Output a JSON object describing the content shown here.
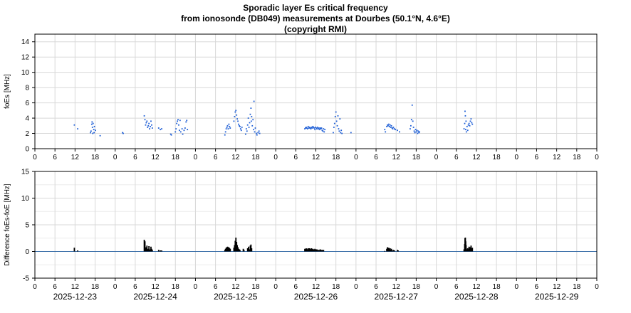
{
  "title": {
    "line1": "Sporadic layer Es critical frequency",
    "line2": "from ionosonde (DB049) measurements at Dourbes (50.1°N, 4.6°E)",
    "line3": "(copyright RMI)"
  },
  "colors": {
    "foes_points": "#1f5fd6",
    "difference_bars": "#000000",
    "zero_line": "#3a6ea8",
    "grid": "#d8d8d8"
  },
  "chart_data": [
    {
      "type": "scatter",
      "ylabel": "foEs [MHz]",
      "ylim": [
        0,
        15
      ],
      "yticks": [
        0,
        2,
        4,
        6,
        8,
        10,
        12,
        14
      ],
      "xlim_hours": [
        0,
        168
      ],
      "x_tick_labels": [
        "0",
        "6",
        "12",
        "18",
        "0",
        "6",
        "12",
        "18",
        "0",
        "6",
        "12",
        "18",
        "0",
        "6",
        "12",
        "18",
        "0",
        "6",
        "12",
        "18",
        "0",
        "6",
        "12",
        "18",
        "0",
        "6",
        "12",
        "18",
        "0"
      ],
      "grid": true,
      "points": [
        [
          11.8,
          3.1
        ],
        [
          12.8,
          2.6
        ],
        [
          16.6,
          2.1
        ],
        [
          16.8,
          2.3
        ],
        [
          17.0,
          3.2
        ],
        [
          17.1,
          3.5
        ],
        [
          17.2,
          2.8
        ],
        [
          17.3,
          2.0
        ],
        [
          17.4,
          3.3
        ],
        [
          17.6,
          2.5
        ],
        [
          17.7,
          2.1
        ],
        [
          17.8,
          2.9
        ],
        [
          18.1,
          2.4
        ],
        [
          19.5,
          1.7
        ],
        [
          26.2,
          2.1
        ],
        [
          26.4,
          2.0
        ],
        [
          32.7,
          4.3
        ],
        [
          32.9,
          3.8
        ],
        [
          33.1,
          3.1
        ],
        [
          33.3,
          3.4
        ],
        [
          33.5,
          3.6
        ],
        [
          33.7,
          2.8
        ],
        [
          33.9,
          3.0
        ],
        [
          34.1,
          3.3
        ],
        [
          34.3,
          2.6
        ],
        [
          34.5,
          2.9
        ],
        [
          34.7,
          3.6
        ],
        [
          34.9,
          3.1
        ],
        [
          35.1,
          2.7
        ],
        [
          37.0,
          2.7
        ],
        [
          37.5,
          2.5
        ],
        [
          37.9,
          2.6
        ],
        [
          40.6,
          1.9
        ],
        [
          40.8,
          1.8
        ],
        [
          42.0,
          2.2
        ],
        [
          42.2,
          2.6
        ],
        [
          42.4,
          3.3
        ],
        [
          42.6,
          3.6
        ],
        [
          42.8,
          3.8
        ],
        [
          43.0,
          3.1
        ],
        [
          43.2,
          2.4
        ],
        [
          43.4,
          3.7
        ],
        [
          43.6,
          2.2
        ],
        [
          44.0,
          2.6
        ],
        [
          44.2,
          1.9
        ],
        [
          44.6,
          2.4
        ],
        [
          44.9,
          2.7
        ],
        [
          45.2,
          3.5
        ],
        [
          45.4,
          3.7
        ],
        [
          45.6,
          2.5
        ],
        [
          56.8,
          1.8
        ],
        [
          57.0,
          2.2
        ],
        [
          57.2,
          2.6
        ],
        [
          57.4,
          2.8
        ],
        [
          57.6,
          3.0
        ],
        [
          57.8,
          2.6
        ],
        [
          58.0,
          3.2
        ],
        [
          58.2,
          2.9
        ],
        [
          58.4,
          2.7
        ],
        [
          59.5,
          3.6
        ],
        [
          59.7,
          4.2
        ],
        [
          59.9,
          4.8
        ],
        [
          60.1,
          5.0
        ],
        [
          60.3,
          4.4
        ],
        [
          60.5,
          3.9
        ],
        [
          60.7,
          3.6
        ],
        [
          60.9,
          3.2
        ],
        [
          61.1,
          3.0
        ],
        [
          61.3,
          2.9
        ],
        [
          61.5,
          2.6
        ],
        [
          61.7,
          2.4
        ],
        [
          61.9,
          2.8
        ],
        [
          63.0,
          1.9
        ],
        [
          63.2,
          2.6
        ],
        [
          63.4,
          2.3
        ],
        [
          63.6,
          3.1
        ],
        [
          63.8,
          4.0
        ],
        [
          64.0,
          2.8
        ],
        [
          64.2,
          3.4
        ],
        [
          64.4,
          4.5
        ],
        [
          64.6,
          5.3
        ],
        [
          64.7,
          3.6
        ],
        [
          64.8,
          4.2
        ],
        [
          65.0,
          3.0
        ],
        [
          65.2,
          3.8
        ],
        [
          65.4,
          2.5
        ],
        [
          65.5,
          6.2
        ],
        [
          65.7,
          2.2
        ],
        [
          65.9,
          2.7
        ],
        [
          66.2,
          2.0
        ],
        [
          66.4,
          1.8
        ],
        [
          66.7,
          2.1
        ],
        [
          67.0,
          2.3
        ],
        [
          67.2,
          2.0
        ],
        [
          80.7,
          2.6
        ],
        [
          80.9,
          2.7
        ],
        [
          81.1,
          2.8
        ],
        [
          81.3,
          2.7
        ],
        [
          81.5,
          2.6
        ],
        [
          81.7,
          2.9
        ],
        [
          81.9,
          2.7
        ],
        [
          82.1,
          2.8
        ],
        [
          82.3,
          2.7
        ],
        [
          82.5,
          2.6
        ],
        [
          82.7,
          2.8
        ],
        [
          82.9,
          2.7
        ],
        [
          83.1,
          2.9
        ],
        [
          83.3,
          2.8
        ],
        [
          83.5,
          2.7
        ],
        [
          83.7,
          2.5
        ],
        [
          83.9,
          2.8
        ],
        [
          84.1,
          2.7
        ],
        [
          84.3,
          2.6
        ],
        [
          84.5,
          2.8
        ],
        [
          84.7,
          2.6
        ],
        [
          84.9,
          2.7
        ],
        [
          85.1,
          2.5
        ],
        [
          85.3,
          2.7
        ],
        [
          85.5,
          2.6
        ],
        [
          85.7,
          2.7
        ],
        [
          85.9,
          2.4
        ],
        [
          86.1,
          2.3
        ],
        [
          86.3,
          2.6
        ],
        [
          86.5,
          2.2
        ],
        [
          86.7,
          2.5
        ],
        [
          89.2,
          2.1
        ],
        [
          89.4,
          2.8
        ],
        [
          89.6,
          3.3
        ],
        [
          89.8,
          4.2
        ],
        [
          90.0,
          4.8
        ],
        [
          90.2,
          3.6
        ],
        [
          90.4,
          3.0
        ],
        [
          90.6,
          4.3
        ],
        [
          90.8,
          2.6
        ],
        [
          91.0,
          2.3
        ],
        [
          91.2,
          3.9
        ],
        [
          91.4,
          2.1
        ],
        [
          91.6,
          2.4
        ],
        [
          91.8,
          2.0
        ],
        [
          94.5,
          2.1
        ],
        [
          104.6,
          2.5
        ],
        [
          104.8,
          2.2
        ],
        [
          105.2,
          2.9
        ],
        [
          105.4,
          3.1
        ],
        [
          105.6,
          3.0
        ],
        [
          105.8,
          3.2
        ],
        [
          106.0,
          2.9
        ],
        [
          106.2,
          3.1
        ],
        [
          106.4,
          2.8
        ],
        [
          106.6,
          3.0
        ],
        [
          106.8,
          2.7
        ],
        [
          107.0,
          2.6
        ],
        [
          107.2,
          2.8
        ],
        [
          107.5,
          2.6
        ],
        [
          107.8,
          2.5
        ],
        [
          108.4,
          2.4
        ],
        [
          109.0,
          2.2
        ],
        [
          112.2,
          2.6
        ],
        [
          112.4,
          3.0
        ],
        [
          112.6,
          3.8
        ],
        [
          112.8,
          5.7
        ],
        [
          113.0,
          3.6
        ],
        [
          113.2,
          2.8
        ],
        [
          113.4,
          2.3
        ],
        [
          113.6,
          2.1
        ],
        [
          113.8,
          2.5
        ],
        [
          114.0,
          2.2
        ],
        [
          114.2,
          2.4
        ],
        [
          114.4,
          2.0
        ],
        [
          114.6,
          2.3
        ],
        [
          114.8,
          2.1
        ],
        [
          115.0,
          2.2
        ],
        [
          128.3,
          2.6
        ],
        [
          128.5,
          3.3
        ],
        [
          128.6,
          4.9
        ],
        [
          128.7,
          4.3
        ],
        [
          128.8,
          2.5
        ],
        [
          128.9,
          3.6
        ],
        [
          129.0,
          2.2
        ],
        [
          129.2,
          2.9
        ],
        [
          129.4,
          2.4
        ],
        [
          129.6,
          3.1
        ],
        [
          129.8,
          3.3
        ],
        [
          130.0,
          3.0
        ],
        [
          130.2,
          3.6
        ],
        [
          130.4,
          3.9
        ],
        [
          130.6,
          3.4
        ],
        [
          130.8,
          3.2
        ]
      ]
    },
    {
      "type": "bar",
      "ylabel": "Difference foEs-foE [MHz]",
      "ylim": [
        -5,
        15
      ],
      "yticks": [
        -5,
        0,
        5,
        10,
        15
      ],
      "xlim_hours": [
        0,
        168
      ],
      "x_tick_labels": [
        "0",
        "6",
        "12",
        "18",
        "0",
        "6",
        "12",
        "18",
        "0",
        "6",
        "12",
        "18",
        "0",
        "6",
        "12",
        "18",
        "0",
        "6",
        "12",
        "18",
        "0",
        "6",
        "12",
        "18",
        "0",
        "6",
        "12",
        "18",
        "0"
      ],
      "date_labels": [
        "2025-12-23",
        "2025-12-24",
        "2025-12-25",
        "2025-12-26",
        "2025-12-27",
        "2025-12-28",
        "2025-12-29"
      ],
      "grid": true,
      "values": [
        [
          11.8,
          0.7
        ],
        [
          12.8,
          0.2
        ],
        [
          32.7,
          2.2
        ],
        [
          32.9,
          1.9
        ],
        [
          33.1,
          0.6
        ],
        [
          33.3,
          0.8
        ],
        [
          33.5,
          1.1
        ],
        [
          33.7,
          0.4
        ],
        [
          33.9,
          0.5
        ],
        [
          34.1,
          1.0
        ],
        [
          34.3,
          0.3
        ],
        [
          34.5,
          0.4
        ],
        [
          34.7,
          0.9
        ],
        [
          34.9,
          0.5
        ],
        [
          35.1,
          0.3
        ],
        [
          37.0,
          0.3
        ],
        [
          37.5,
          0.2
        ],
        [
          37.9,
          0.2
        ],
        [
          56.8,
          0.3
        ],
        [
          57.0,
          0.5
        ],
        [
          57.2,
          0.7
        ],
        [
          57.4,
          0.8
        ],
        [
          57.6,
          0.9
        ],
        [
          57.8,
          0.7
        ],
        [
          58.0,
          0.8
        ],
        [
          58.2,
          0.6
        ],
        [
          58.4,
          0.5
        ],
        [
          59.5,
          0.7
        ],
        [
          59.7,
          1.2
        ],
        [
          59.9,
          2.0
        ],
        [
          60.1,
          2.6
        ],
        [
          60.3,
          1.8
        ],
        [
          60.5,
          1.2
        ],
        [
          60.7,
          0.8
        ],
        [
          60.9,
          0.5
        ],
        [
          61.1,
          0.4
        ],
        [
          61.3,
          0.3
        ],
        [
          62.3,
          0.5
        ],
        [
          62.5,
          0.3
        ],
        [
          63.6,
          0.6
        ],
        [
          63.9,
          0.9
        ],
        [
          64.1,
          0.4
        ],
        [
          64.4,
          1.1
        ],
        [
          64.6,
          1.3
        ],
        [
          64.8,
          0.6
        ],
        [
          80.7,
          0.5
        ],
        [
          80.9,
          0.4
        ],
        [
          81.1,
          0.6
        ],
        [
          81.3,
          0.5
        ],
        [
          81.5,
          0.3
        ],
        [
          81.7,
          0.6
        ],
        [
          81.9,
          0.4
        ],
        [
          82.1,
          0.6
        ],
        [
          82.3,
          0.5
        ],
        [
          82.5,
          0.3
        ],
        [
          82.7,
          0.6
        ],
        [
          82.9,
          0.4
        ],
        [
          83.1,
          0.5
        ],
        [
          83.3,
          0.4
        ],
        [
          83.5,
          0.3
        ],
        [
          83.7,
          0.5
        ],
        [
          83.9,
          0.4
        ],
        [
          84.1,
          0.3
        ],
        [
          84.3,
          0.4
        ],
        [
          84.5,
          0.3
        ],
        [
          84.7,
          0.2
        ],
        [
          84.9,
          0.3
        ],
        [
          85.1,
          0.2
        ],
        [
          85.3,
          0.4
        ],
        [
          85.5,
          0.3
        ],
        [
          85.7,
          0.2
        ],
        [
          85.9,
          0.3
        ],
        [
          86.1,
          0.2
        ],
        [
          86.3,
          0.3
        ],
        [
          104.6,
          0.1
        ],
        [
          105.2,
          0.5
        ],
        [
          105.4,
          0.8
        ],
        [
          105.6,
          0.6
        ],
        [
          105.8,
          0.7
        ],
        [
          106.0,
          0.4
        ],
        [
          106.2,
          0.6
        ],
        [
          106.4,
          0.3
        ],
        [
          106.6,
          0.5
        ],
        [
          106.8,
          0.2
        ],
        [
          107.2,
          0.3
        ],
        [
          107.5,
          0.2
        ],
        [
          108.4,
          0.3
        ],
        [
          108.6,
          0.2
        ],
        [
          128.3,
          0.4
        ],
        [
          128.5,
          1.4
        ],
        [
          128.6,
          2.5
        ],
        [
          128.7,
          2.6
        ],
        [
          128.8,
          1.9
        ],
        [
          128.9,
          1.2
        ],
        [
          129.0,
          0.5
        ],
        [
          129.2,
          0.3
        ],
        [
          129.4,
          0.6
        ],
        [
          129.6,
          0.4
        ],
        [
          129.8,
          0.9
        ],
        [
          130.0,
          0.5
        ],
        [
          130.2,
          0.8
        ],
        [
          130.4,
          1.1
        ],
        [
          130.6,
          0.6
        ],
        [
          130.8,
          0.7
        ]
      ]
    }
  ]
}
